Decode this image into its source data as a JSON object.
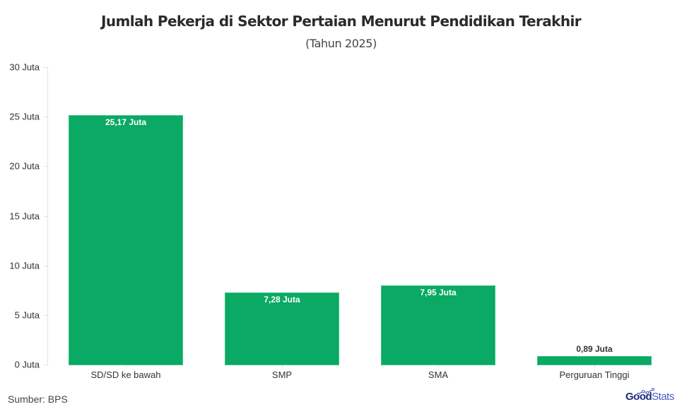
{
  "title": "Jumlah Pekerja di Sektor Pertaian Menurut Pendidikan Terakhir",
  "subtitle": "(Tahun 2025)",
  "source": "Sumber: BPS",
  "logo": {
    "part1": "Good",
    "part2": "Stats"
  },
  "colors": {
    "bar": "#0aa964",
    "bar_border": "#3cc189",
    "logo_dark": "#1e2a78",
    "logo_light": "#4b5bbf"
  },
  "y_axis": {
    "ticks": [
      {
        "value": 0,
        "label": "0 Juta"
      },
      {
        "value": 5,
        "label": "5 Juta"
      },
      {
        "value": 10,
        "label": "10 Juta"
      },
      {
        "value": 15,
        "label": "15 Juta"
      },
      {
        "value": 20,
        "label": "20 Juta"
      },
      {
        "value": 25,
        "label": "25 Juta"
      },
      {
        "value": 30,
        "label": "30 Juta"
      }
    ]
  },
  "bars": [
    {
      "category": "SD/SD ke bawah",
      "value": 25.17,
      "label": "25,17 Juta",
      "label_position": "inside"
    },
    {
      "category": "SMP",
      "value": 7.28,
      "label": "7,28 Juta",
      "label_position": "inside"
    },
    {
      "category": "SMA",
      "value": 7.95,
      "label": "7,95 Juta",
      "label_position": "inside"
    },
    {
      "category": "Perguruan Tinggi",
      "value": 0.89,
      "label": "0,89 Juta",
      "label_position": "outside"
    }
  ],
  "chart_data": {
    "type": "bar",
    "title": "Jumlah Pekerja di Sektor Pertaian Menurut Pendidikan Terakhir",
    "subtitle": "(Tahun 2025)",
    "categories": [
      "SD/SD ke bawah",
      "SMP",
      "SMA",
      "Perguruan Tinggi"
    ],
    "values": [
      25.17,
      7.28,
      7.95,
      0.89
    ],
    "data_labels": [
      "25,17 Juta",
      "7,28 Juta",
      "7,95 Juta",
      "0,89 Juta"
    ],
    "unit": "Juta",
    "xlabel": "",
    "ylabel": "",
    "ylim": [
      0,
      30
    ],
    "yticks": [
      "0 Juta",
      "5 Juta",
      "10 Juta",
      "15 Juta",
      "20 Juta",
      "25 Juta",
      "30 Juta"
    ],
    "grid": false,
    "legend": "none",
    "source": "Sumber: BPS"
  }
}
